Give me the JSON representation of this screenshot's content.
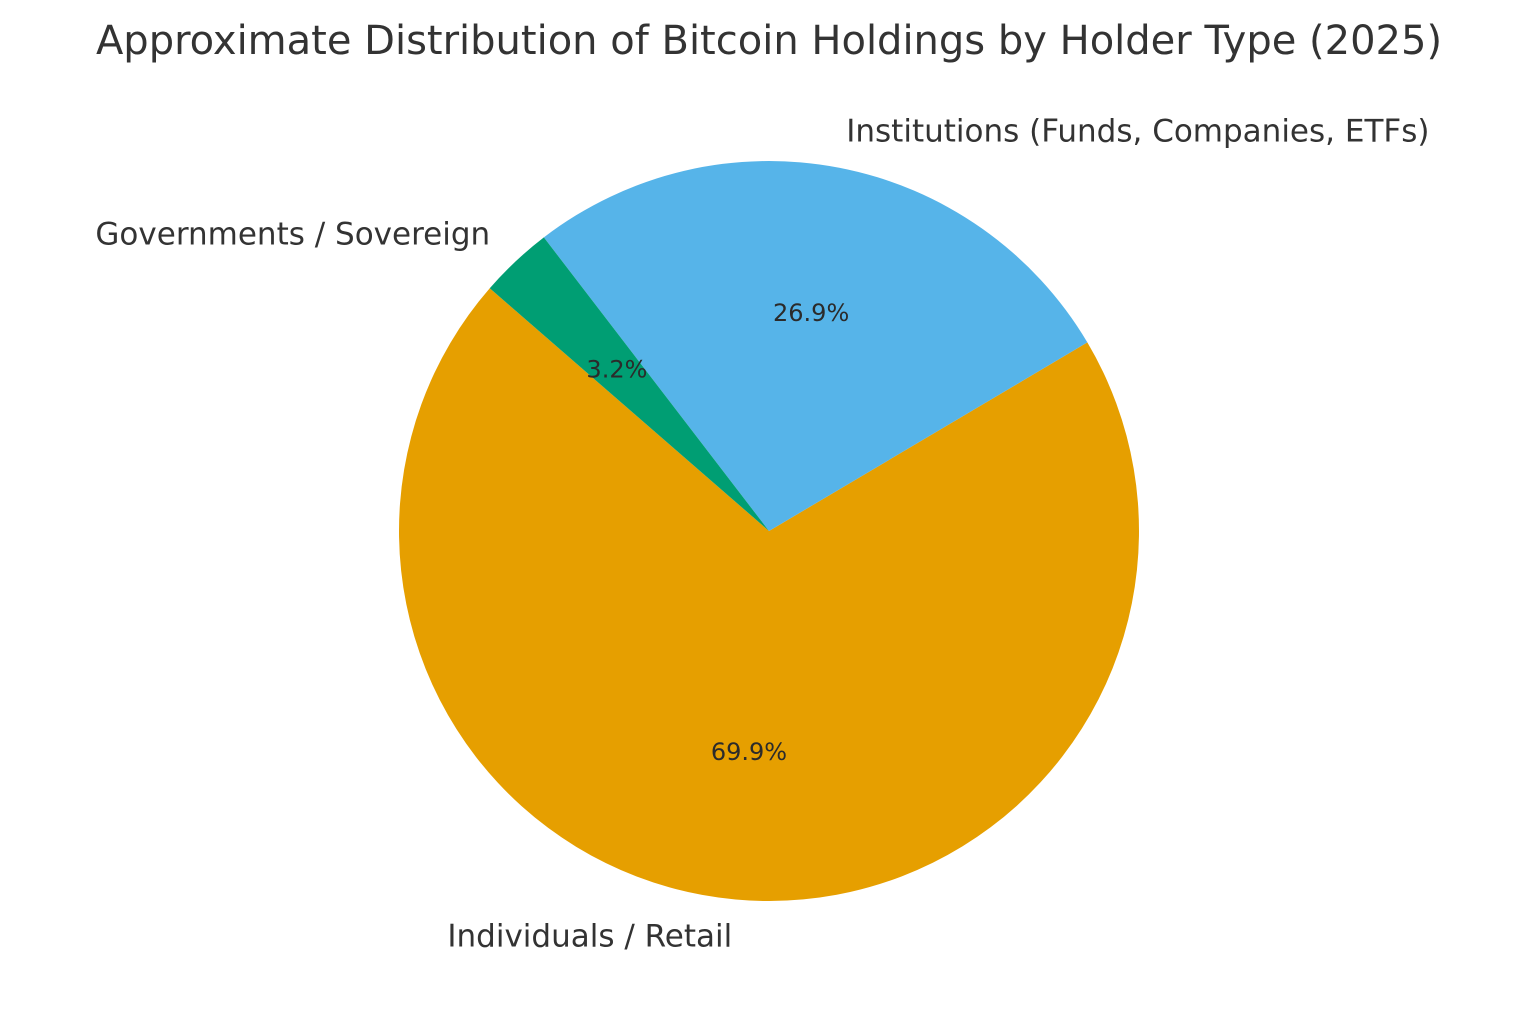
{
  "chart_data": {
    "type": "pie",
    "title": "Approximate Distribution of Bitcoin Holdings by Holder Type (2025)",
    "slices": [
      {
        "label": "Individuals / Retail",
        "value": 69.9,
        "pct_label": "69.9%",
        "color": "#E69F00"
      },
      {
        "label": "Institutions (Funds, Companies, ETFs)",
        "value": 26.9,
        "pct_label": "26.9%",
        "color": "#56B4E9"
      },
      {
        "label": "Governments / Sovereign",
        "value": 3.2,
        "pct_label": "3.2%",
        "color": "#009E73"
      }
    ],
    "legend": "none"
  }
}
